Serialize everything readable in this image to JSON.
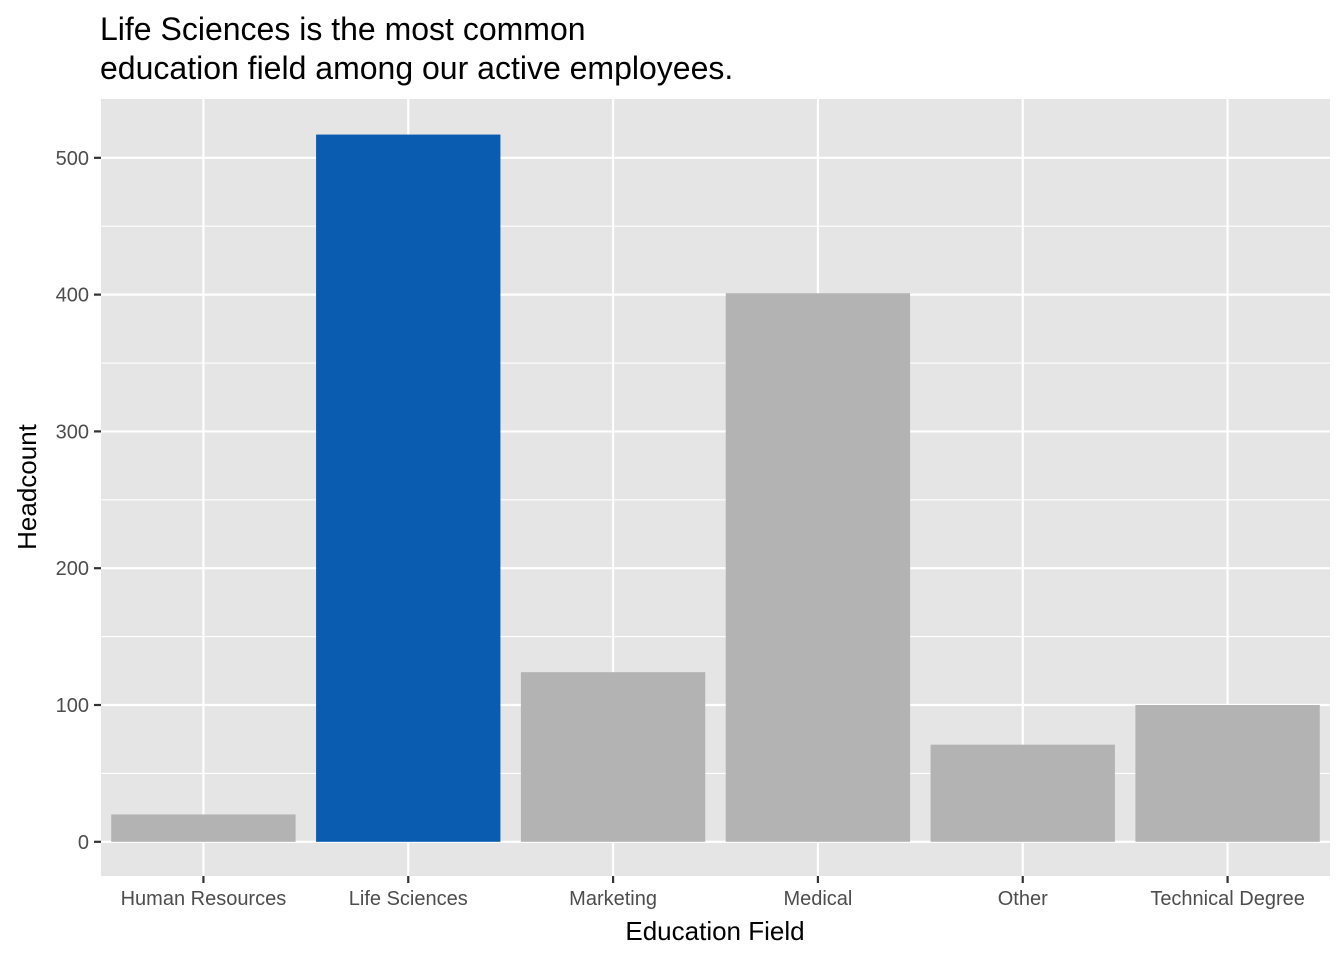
{
  "chart_data": {
    "type": "bar",
    "title_lines": [
      "Life Sciences is the most common",
      "education field among our active employees."
    ],
    "xlabel": "Education Field",
    "ylabel": "Headcount",
    "categories": [
      "Human Resources",
      "Life Sciences",
      "Marketing",
      "Medical",
      "Other",
      "Technical Degree"
    ],
    "values": [
      20,
      517,
      124,
      401,
      71,
      100
    ],
    "highlight": "Life Sciences",
    "ylim": [
      -25,
      543
    ],
    "yticks": [
      0,
      100,
      200,
      300,
      400,
      500
    ],
    "grid": true,
    "legend": "none",
    "colors": {
      "panel": "#e5e5e5",
      "grid": "#ffffff",
      "bar": "#b3b3b3",
      "highlight": "#0a5cb0",
      "tick": "#333333"
    }
  }
}
